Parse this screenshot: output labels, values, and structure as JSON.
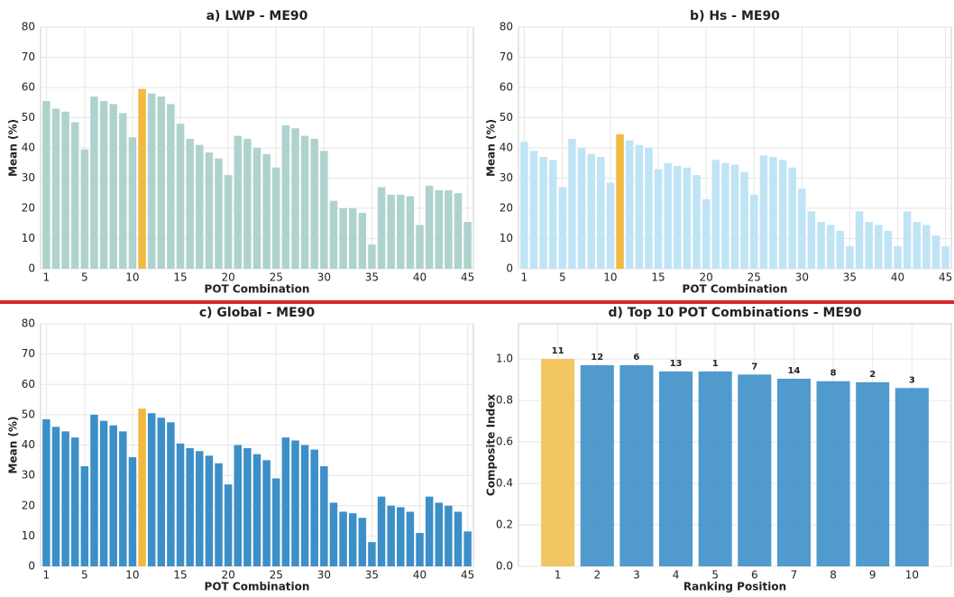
{
  "chart_data": [
    {
      "type": "bar",
      "title": "a) LWP - ME90",
      "xlabel": "POT Combination",
      "ylabel": "Mean (%)",
      "x": [
        1,
        2,
        3,
        4,
        5,
        6,
        7,
        8,
        9,
        10,
        11,
        12,
        13,
        14,
        15,
        16,
        17,
        18,
        19,
        20,
        21,
        22,
        23,
        24,
        25,
        26,
        27,
        28,
        29,
        30,
        31,
        32,
        33,
        34,
        35,
        36,
        37,
        38,
        39,
        40,
        41,
        42,
        43,
        44,
        45
      ],
      "values": [
        55.5,
        53,
        52,
        48.5,
        39.5,
        57,
        55.5,
        54.5,
        51.5,
        43.5,
        59.5,
        58,
        57,
        54.5,
        48,
        43,
        41,
        38.5,
        36.5,
        31,
        44,
        43,
        40,
        38,
        33.5,
        47.5,
        46.5,
        44,
        43,
        39,
        22.5,
        20,
        20,
        18.5,
        8,
        27,
        24.5,
        24.5,
        24,
        14.5,
        27.5,
        26,
        26,
        25,
        15.5
      ],
      "color": "#afd3cc",
      "highlight_x": 11,
      "highlight_color": "#f1b941",
      "xlim": [
        0.4,
        45.6
      ],
      "xticks": [
        1,
        5,
        10,
        15,
        20,
        25,
        30,
        35,
        40,
        45
      ],
      "ylim": [
        0,
        80
      ],
      "yticks": [
        0,
        10,
        20,
        30,
        40,
        50,
        60,
        70,
        80
      ],
      "grid": true
    },
    {
      "type": "bar",
      "title": "b) Hs - ME90",
      "xlabel": "POT Combination",
      "ylabel": "Mean (%)",
      "x": [
        1,
        2,
        3,
        4,
        5,
        6,
        7,
        8,
        9,
        10,
        11,
        12,
        13,
        14,
        15,
        16,
        17,
        18,
        19,
        20,
        21,
        22,
        23,
        24,
        25,
        26,
        27,
        28,
        29,
        30,
        31,
        32,
        33,
        34,
        35,
        36,
        37,
        38,
        39,
        40,
        41,
        42,
        43,
        44,
        45
      ],
      "values": [
        42,
        39,
        37,
        36,
        27,
        43,
        40,
        38,
        37,
        28.5,
        44.5,
        42.5,
        41,
        40,
        33,
        35,
        34,
        33.5,
        31,
        23,
        36,
        35,
        34.5,
        32,
        24.5,
        37.5,
        37,
        36,
        33.5,
        26.5,
        19,
        15.5,
        14.5,
        12.5,
        7.5,
        19,
        15.5,
        14.5,
        12.5,
        7.5,
        19,
        15.5,
        14.5,
        11,
        7.5
      ],
      "color": "#bfe4f5",
      "highlight_x": 11,
      "highlight_color": "#f1b941",
      "xlim": [
        0.4,
        45.6
      ],
      "xticks": [
        1,
        5,
        10,
        15,
        20,
        25,
        30,
        35,
        40,
        45
      ],
      "ylim": [
        0,
        80
      ],
      "yticks": [
        0,
        10,
        20,
        30,
        40,
        50,
        60,
        70,
        80
      ],
      "grid": true
    },
    {
      "type": "bar",
      "title": "c) Global - ME90",
      "xlabel": "POT Combination",
      "ylabel": "Mean (%)",
      "x": [
        1,
        2,
        3,
        4,
        5,
        6,
        7,
        8,
        9,
        10,
        11,
        12,
        13,
        14,
        15,
        16,
        17,
        18,
        19,
        20,
        21,
        22,
        23,
        24,
        25,
        26,
        27,
        28,
        29,
        30,
        31,
        32,
        33,
        34,
        35,
        36,
        37,
        38,
        39,
        40,
        41,
        42,
        43,
        44,
        45
      ],
      "values": [
        48.5,
        46,
        44.5,
        42.5,
        33,
        50,
        48,
        46.5,
        44.5,
        36,
        52,
        50.5,
        49,
        47.5,
        40.5,
        39,
        38,
        36.5,
        34,
        27,
        40,
        39,
        37,
        35,
        29,
        42.5,
        41.5,
        40,
        38.5,
        33,
        21,
        18,
        17.5,
        16,
        8,
        23,
        20,
        19.5,
        18,
        11,
        23,
        21,
        20,
        18,
        11.5
      ],
      "color": "#3d8fc8",
      "highlight_x": 11,
      "highlight_color": "#f1b941",
      "xlim": [
        0.4,
        45.6
      ],
      "xticks": [
        1,
        5,
        10,
        15,
        20,
        25,
        30,
        35,
        40,
        45
      ],
      "ylim": [
        0,
        80
      ],
      "yticks": [
        0,
        10,
        20,
        30,
        40,
        50,
        60,
        70,
        80
      ],
      "grid": true
    },
    {
      "type": "bar",
      "title": "d) Top 10 POT Combinations - ME90",
      "xlabel": "Ranking Position",
      "ylabel": "Composite Index",
      "x": [
        1,
        2,
        3,
        4,
        5,
        6,
        7,
        8,
        9,
        10
      ],
      "values": [
        1.0,
        0.97,
        0.97,
        0.94,
        0.94,
        0.925,
        0.905,
        0.893,
        0.888,
        0.86
      ],
      "annotations": [
        "11",
        "12",
        "6",
        "13",
        "1",
        "7",
        "14",
        "8",
        "2",
        "3"
      ],
      "color": "#3d8fc8",
      "highlight_x": 1,
      "highlight_color": "#f1c050",
      "xlim": [
        0,
        11
      ],
      "xticks": [
        1,
        2,
        3,
        4,
        5,
        6,
        7,
        8,
        9,
        10
      ],
      "ylim": [
        0,
        1.17
      ],
      "yticks": [
        {
          "value": 0,
          "label": "0.0"
        },
        {
          "value": 0.2,
          "label": "0.2"
        },
        {
          "value": 0.4,
          "label": "0.4"
        },
        {
          "value": 0.6,
          "label": "0.6"
        },
        {
          "value": 0.8,
          "label": "0.8"
        },
        {
          "value": 1.0,
          "label": "1.0"
        }
      ],
      "grid": true
    }
  ]
}
